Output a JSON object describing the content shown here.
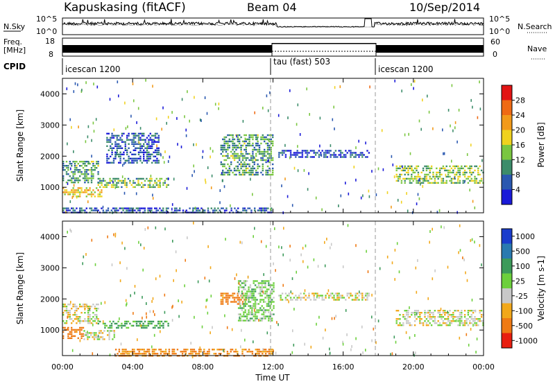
{
  "header": {
    "station": "Kapuskasing (fitACF)",
    "beam": "Beam 04",
    "date": "10/Sep/2014"
  },
  "strips": {
    "nsky_label": "N.Sky",
    "nsky_ticks": [
      "10^5",
      "10^0"
    ],
    "nsearch_label": "N.Search",
    "nsearch_ticks": [
      "10^5",
      "10^0"
    ],
    "freq_label_1": "Freq.",
    "freq_label_2": "[MHz]",
    "freq_ticks": [
      "18",
      "8"
    ],
    "nave_label": "Nave",
    "nave_ticks": [
      "60",
      "0"
    ],
    "cpid_label": "CPID",
    "cpid_segments": [
      {
        "label": "icescan 1200",
        "start_hour": 0
      },
      {
        "label": "tau (fast) 503",
        "start_hour": 12
      },
      {
        "label": "icescan 1200",
        "start_hour": 18
      }
    ]
  },
  "chart_data": [
    {
      "type": "heatmap",
      "parameter": "Power",
      "ylabel": "Slant Range [km]",
      "xlabel": "Time UT",
      "ylim": [
        180,
        4500
      ],
      "xlim_hours": [
        0,
        24
      ],
      "y_ticks": [
        "1000",
        "2000",
        "3000",
        "4000"
      ],
      "x_ticks": [
        "00:00",
        "04:00",
        "08:00",
        "12:00",
        "16:00",
        "20:00",
        "00:00"
      ],
      "colorbar_label": "Power [dB]",
      "colorbar_ticks": [
        "4",
        "8",
        "12",
        "16",
        "20",
        "24",
        "28"
      ],
      "colorbar_colors": [
        "#1a1ad8",
        "#2a58b0",
        "#3c8c6a",
        "#7ac640",
        "#f0d21e",
        "#f29a1a",
        "#ef6a14",
        "#e21414"
      ],
      "mode_change_hours": [
        12,
        18
      ],
      "echo_regions": [
        {
          "t0": 0.0,
          "t1": 2.2,
          "r0": 700,
          "r1": 1000,
          "level": 0.55
        },
        {
          "t0": 0.0,
          "t1": 2.0,
          "r0": 1150,
          "r1": 1850,
          "level": 0.3
        },
        {
          "t0": 2.0,
          "t1": 6.0,
          "r0": 1000,
          "r1": 1300,
          "level": 0.35
        },
        {
          "t0": 2.5,
          "t1": 5.5,
          "r0": 1750,
          "r1": 2750,
          "level": 0.15
        },
        {
          "t0": 9.0,
          "t1": 12.0,
          "r0": 1400,
          "r1": 2700,
          "level": 0.3
        },
        {
          "t0": 12.3,
          "t1": 17.5,
          "r0": 1950,
          "r1": 2200,
          "level": 0.12
        },
        {
          "t0": 19.0,
          "t1": 24.0,
          "r0": 1150,
          "r1": 1700,
          "level": 0.4
        },
        {
          "t0": 0.0,
          "t1": 12.0,
          "r0": 180,
          "r1": 350,
          "level": 0.15
        }
      ]
    },
    {
      "type": "heatmap",
      "parameter": "Velocity",
      "ylabel": "Slant Range [km]",
      "xlabel": "Time UT",
      "ylim": [
        180,
        4500
      ],
      "xlim_hours": [
        0,
        24
      ],
      "y_ticks": [
        "1000",
        "2000",
        "3000",
        "4000"
      ],
      "x_ticks": [
        "00:00",
        "04:00",
        "08:00",
        "12:00",
        "16:00",
        "20:00",
        "00:00"
      ],
      "colorbar_label": "Velocity [m s-1]",
      "colorbar_ticks": [
        "1000",
        "500",
        "100",
        "25",
        "-25",
        "-100",
        "-500",
        "-1000"
      ],
      "colorbar_colors": [
        "#1a3ccc",
        "#2a7ab0",
        "#3c9a5a",
        "#6cd03c",
        "#c8c8c8",
        "#f2a81a",
        "#ef7a14",
        "#e81e10"
      ],
      "mode_change_hours": [
        12,
        18
      ],
      "echo_regions": [
        {
          "t0": 0.0,
          "t1": 1.2,
          "r0": 750,
          "r1": 1100,
          "vel": -400
        },
        {
          "t0": 1.2,
          "t1": 3.0,
          "r0": 700,
          "r1": 1000,
          "vel": 0
        },
        {
          "t0": 2.0,
          "t1": 6.0,
          "r0": 1050,
          "r1": 1300,
          "vel": 120
        },
        {
          "t0": 0.0,
          "t1": 2.0,
          "r0": 1200,
          "r1": 1850,
          "vel": 0
        },
        {
          "t0": 9.0,
          "t1": 10.5,
          "r0": 1800,
          "r1": 2200,
          "vel": -150
        },
        {
          "t0": 10.0,
          "t1": 12.0,
          "r0": 1300,
          "r1": 2600,
          "vel": 60
        },
        {
          "t0": 12.3,
          "t1": 17.5,
          "r0": 1950,
          "r1": 2200,
          "vel": 0
        },
        {
          "t0": 19.0,
          "t1": 24.0,
          "r0": 1150,
          "r1": 1650,
          "vel": 0
        },
        {
          "t0": 3.0,
          "t1": 12.0,
          "r0": 180,
          "r1": 400,
          "vel": -120
        }
      ]
    }
  ]
}
